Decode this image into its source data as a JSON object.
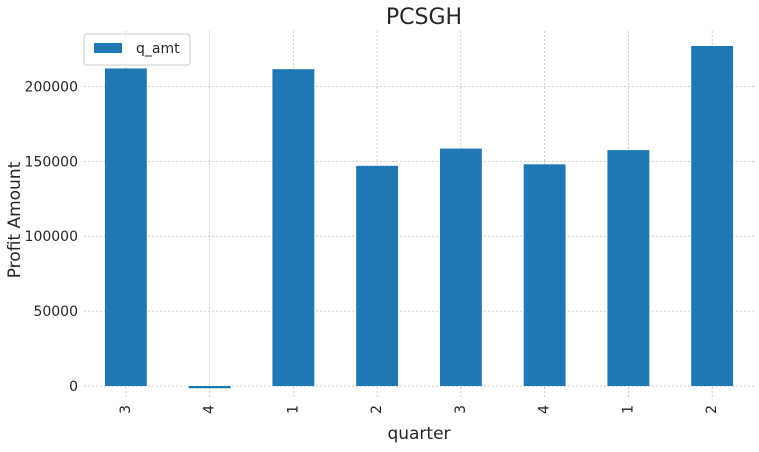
{
  "chart_data": {
    "type": "bar",
    "title": "PCSGH",
    "xlabel": "quarter",
    "ylabel": "Profit Amount",
    "categories": [
      "3",
      "4",
      "1",
      "2",
      "3",
      "4",
      "1",
      "2"
    ],
    "series": [
      {
        "name": "q_amt",
        "values": [
          212000,
          -1500,
          211500,
          147000,
          158500,
          148000,
          157500,
          227000
        ],
        "color": "#1f77b4"
      }
    ],
    "ylim": [
      -8000,
      237000
    ],
    "yticks": [
      0,
      50000,
      100000,
      150000,
      200000
    ],
    "ytick_labels": [
      "0",
      "50000",
      "100000",
      "150000",
      "200000"
    ],
    "grid": true,
    "legend_position": "top-left"
  }
}
